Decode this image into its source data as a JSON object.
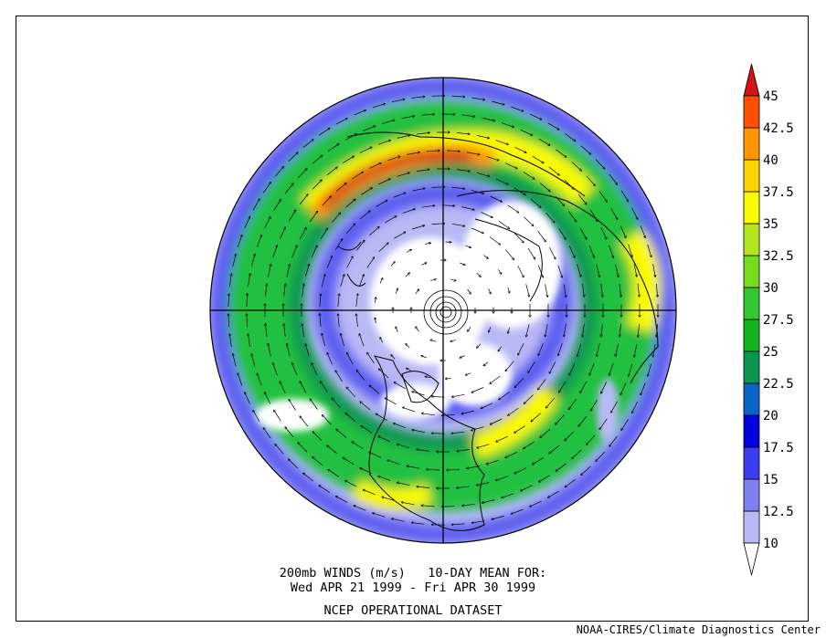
{
  "title": {
    "line1": "200mb WINDS (m/s)   10-DAY MEAN FOR:",
    "line2": "Wed APR 21 1999 - Fri APR 30 1999",
    "dataset": "NCEP OPERATIONAL DATASET"
  },
  "credit": "NOAA-CIRES/Climate Diagnostics Center",
  "colorbar": {
    "levels": [
      "10",
      "12.5",
      "15",
      "17.5",
      "20",
      "22.5",
      "25",
      "27.5",
      "30",
      "32.5",
      "35",
      "37.5",
      "40",
      "42.5",
      "45"
    ],
    "colors": [
      "#ffffff",
      "#b9b9f5",
      "#7f7ff0",
      "#3c3cf0",
      "#0000dc",
      "#0a64c8",
      "#0a9650",
      "#14b41e",
      "#32c832",
      "#78dc1e",
      "#b4e61e",
      "#fafa00",
      "#ffd200",
      "#ff9600",
      "#ff5000",
      "#d21414"
    ]
  },
  "map": {
    "projection": "north polar stereographic",
    "fill_colors": {
      "calm": "#ffffff",
      "light": "#b9b9f5",
      "mid_blue": "#5c5cf0",
      "teal": "#0a9650",
      "green": "#22c040",
      "yellow_green": "#b4e61e",
      "yellow": "#fafa00",
      "orange": "#ff9600",
      "red": "#d21414"
    }
  }
}
